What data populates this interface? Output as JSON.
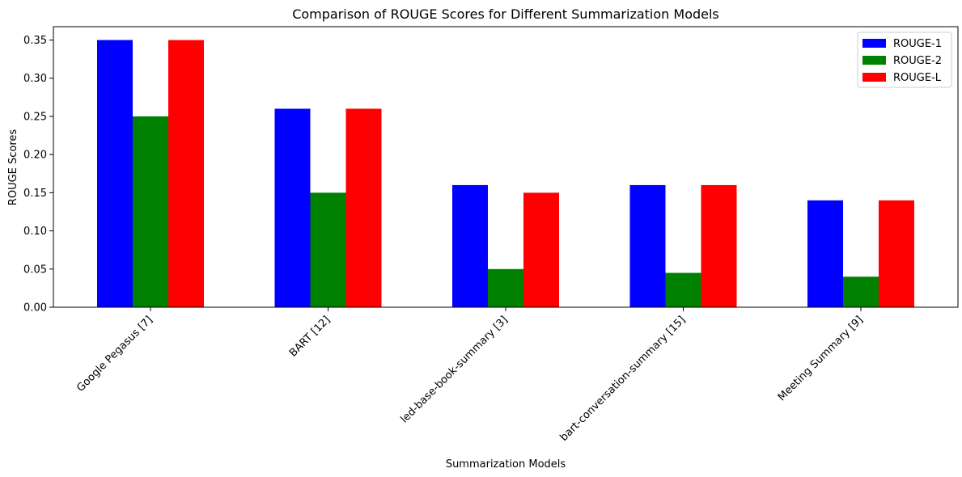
{
  "chart_data": {
    "type": "bar",
    "title": "Comparison of ROUGE Scores for Different Summarization Models",
    "xlabel": "Summarization Models",
    "ylabel": "ROUGE Scores",
    "categories": [
      "Google Pegasus [7]",
      "BART [12]",
      "led-base-book-summary [3]",
      "bart-conversation-summary [15]",
      "Meeting Summary [9]"
    ],
    "series": [
      {
        "name": "ROUGE-1",
        "color": "#0000ff",
        "values": [
          0.35,
          0.26,
          0.16,
          0.16,
          0.14
        ]
      },
      {
        "name": "ROUGE-2",
        "color": "#008000",
        "values": [
          0.25,
          0.15,
          0.05,
          0.045,
          0.04
        ]
      },
      {
        "name": "ROUGE-L",
        "color": "#ff0000",
        "values": [
          0.35,
          0.26,
          0.15,
          0.16,
          0.14
        ]
      }
    ],
    "ylim": [
      0,
      0.3675
    ],
    "yticks": [
      "0.00",
      "0.05",
      "0.10",
      "0.15",
      "0.20",
      "0.25",
      "0.30",
      "0.35"
    ],
    "grid": false,
    "legend_position": "top-right"
  }
}
